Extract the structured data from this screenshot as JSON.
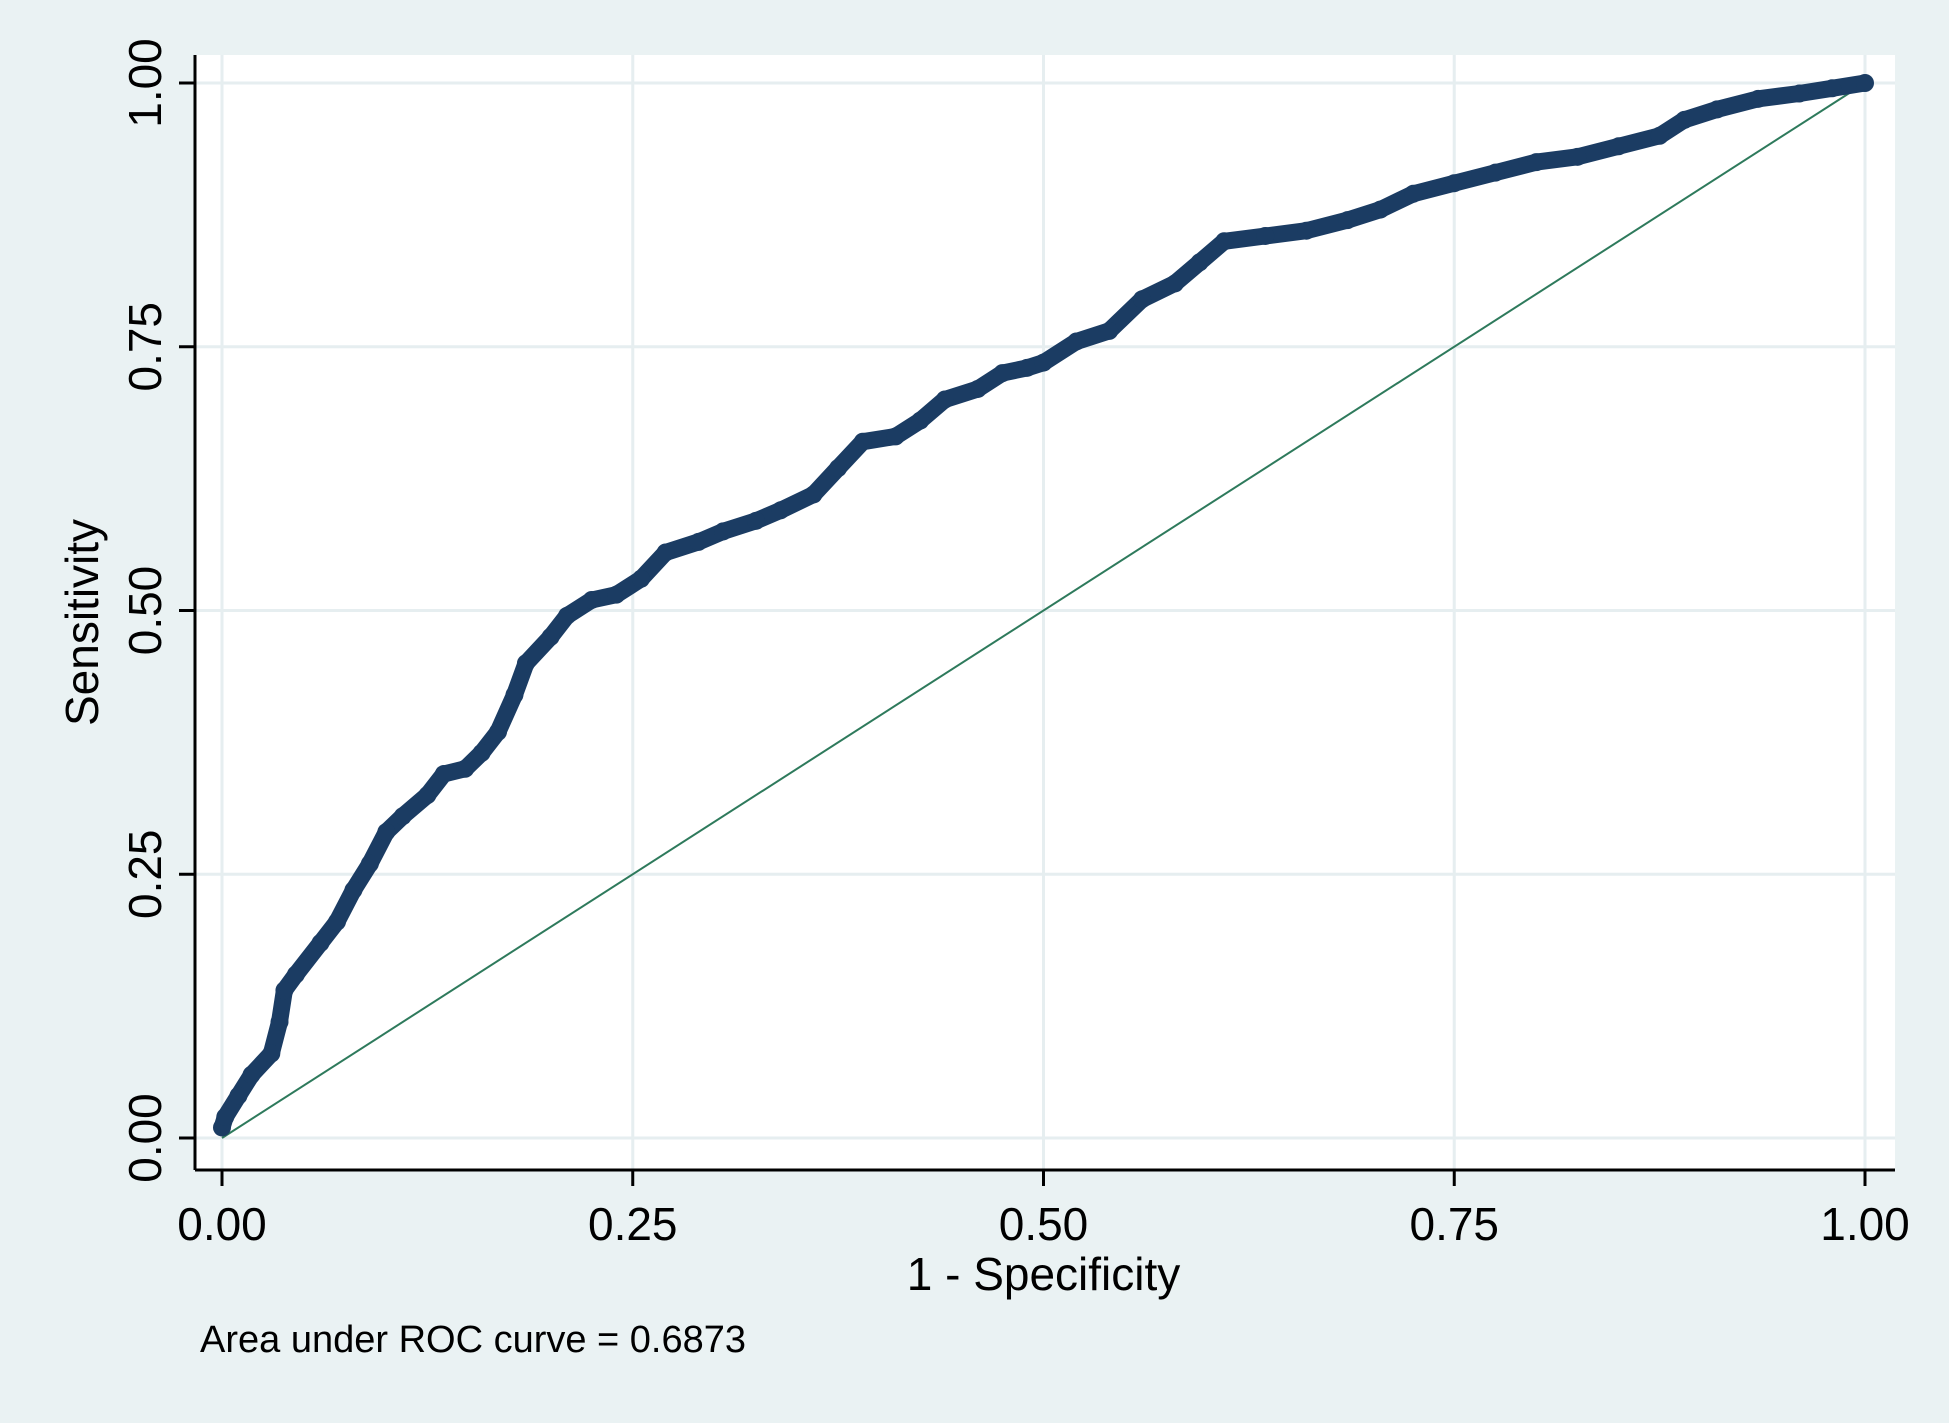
{
  "chart_data": {
    "type": "line",
    "title": "",
    "xlabel": "1 - Specificity",
    "ylabel": "Sensitivity",
    "xlim": [
      0,
      1
    ],
    "ylim": [
      0,
      1
    ],
    "x_ticks": [
      "0.00",
      "0.25",
      "0.50",
      "0.75",
      "1.00"
    ],
    "y_ticks": [
      "0.00",
      "0.25",
      "0.50",
      "0.75",
      "1.00"
    ],
    "x_tick_values": [
      0,
      0.25,
      0.5,
      0.75,
      1
    ],
    "y_tick_values": [
      0,
      0.25,
      0.5,
      0.75,
      1
    ],
    "grid": true,
    "note": "Area under ROC curve = 0.6873",
    "colors": {
      "background": "#eaf2f3",
      "plot_area": "#ffffff",
      "grid": "#e6eef0",
      "roc_curve": "#1b3c63",
      "reference_line": "#2e7a5c"
    },
    "series": [
      {
        "role": "roc_curve",
        "points": [
          [
            0.0,
            0.01
          ],
          [
            0.002,
            0.02
          ],
          [
            0.01,
            0.04
          ],
          [
            0.018,
            0.06
          ],
          [
            0.03,
            0.08
          ],
          [
            0.035,
            0.11
          ],
          [
            0.038,
            0.14
          ],
          [
            0.045,
            0.155
          ],
          [
            0.06,
            0.185
          ],
          [
            0.07,
            0.205
          ],
          [
            0.08,
            0.235
          ],
          [
            0.09,
            0.26
          ],
          [
            0.1,
            0.29
          ],
          [
            0.11,
            0.305
          ],
          [
            0.125,
            0.325
          ],
          [
            0.135,
            0.345
          ],
          [
            0.148,
            0.35
          ],
          [
            0.158,
            0.365
          ],
          [
            0.168,
            0.385
          ],
          [
            0.178,
            0.42
          ],
          [
            0.185,
            0.45
          ],
          [
            0.2,
            0.475
          ],
          [
            0.21,
            0.495
          ],
          [
            0.225,
            0.51
          ],
          [
            0.24,
            0.515
          ],
          [
            0.255,
            0.53
          ],
          [
            0.27,
            0.555
          ],
          [
            0.29,
            0.565
          ],
          [
            0.305,
            0.575
          ],
          [
            0.325,
            0.585
          ],
          [
            0.34,
            0.595
          ],
          [
            0.36,
            0.61
          ],
          [
            0.375,
            0.635
          ],
          [
            0.39,
            0.66
          ],
          [
            0.41,
            0.665
          ],
          [
            0.425,
            0.68
          ],
          [
            0.44,
            0.7
          ],
          [
            0.46,
            0.71
          ],
          [
            0.475,
            0.725
          ],
          [
            0.49,
            0.73
          ],
          [
            0.5,
            0.735
          ],
          [
            0.52,
            0.755
          ],
          [
            0.54,
            0.765
          ],
          [
            0.56,
            0.795
          ],
          [
            0.58,
            0.81
          ],
          [
            0.595,
            0.83
          ],
          [
            0.61,
            0.85
          ],
          [
            0.635,
            0.855
          ],
          [
            0.66,
            0.86
          ],
          [
            0.685,
            0.87
          ],
          [
            0.705,
            0.88
          ],
          [
            0.725,
            0.895
          ],
          [
            0.75,
            0.905
          ],
          [
            0.775,
            0.915
          ],
          [
            0.8,
            0.925
          ],
          [
            0.825,
            0.93
          ],
          [
            0.85,
            0.94
          ],
          [
            0.875,
            0.95
          ],
          [
            0.89,
            0.965
          ],
          [
            0.91,
            0.975
          ],
          [
            0.935,
            0.985
          ],
          [
            0.96,
            0.99
          ],
          [
            0.98,
            0.995
          ],
          [
            1.0,
            1.0
          ]
        ]
      },
      {
        "role": "reference_line",
        "points": [
          [
            0,
            0
          ],
          [
            1,
            1
          ]
        ]
      }
    ]
  }
}
